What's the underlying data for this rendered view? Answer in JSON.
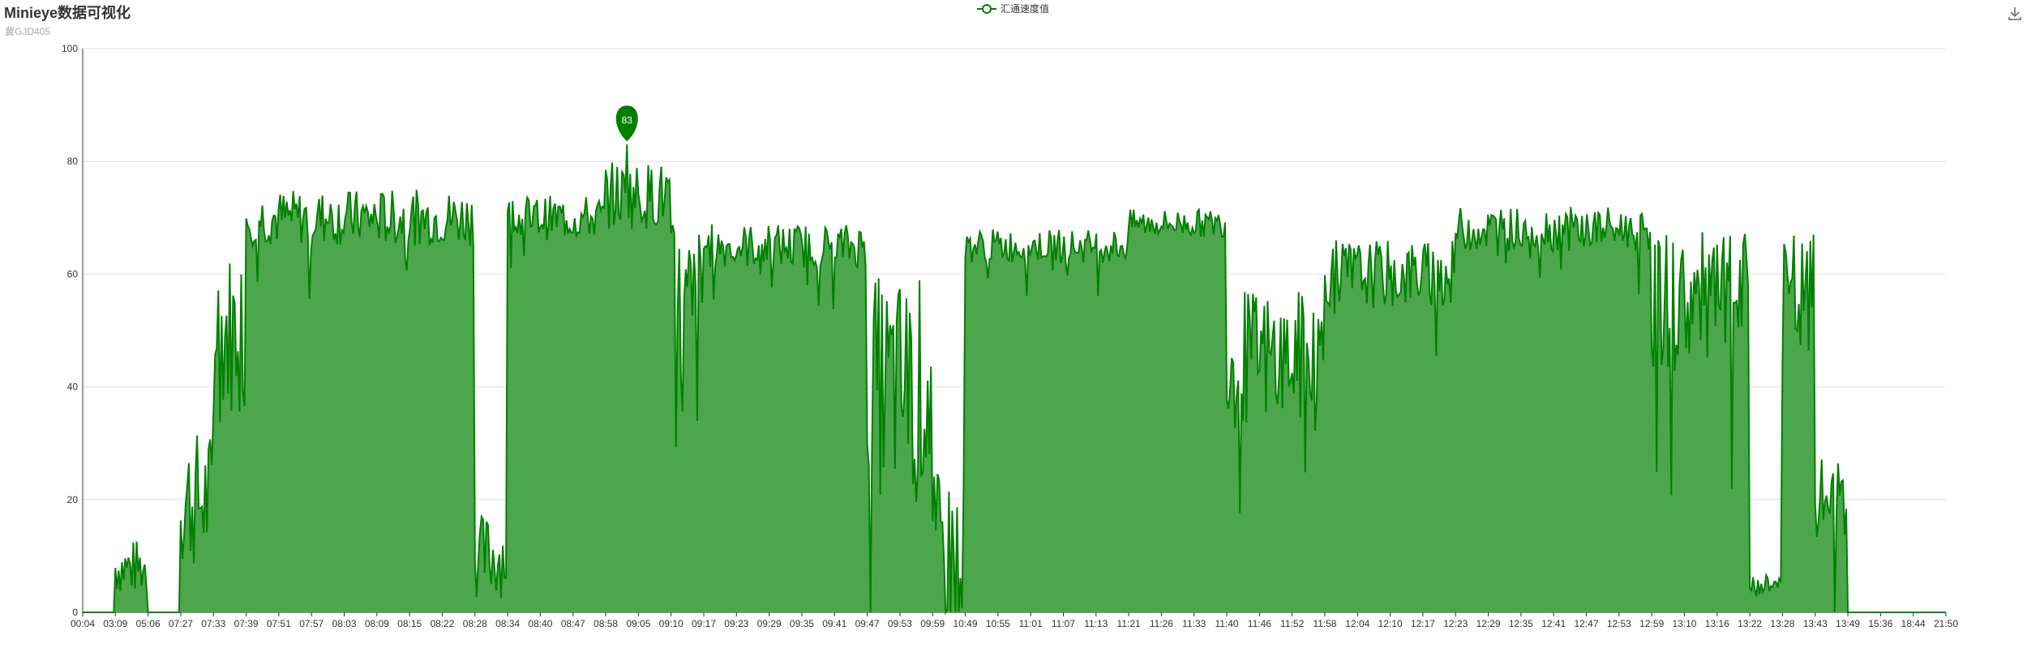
{
  "title": "Minieye数据可视化",
  "subtitle": "冀GJD405",
  "toolbox": {
    "save_icon": "download-icon"
  },
  "colors": {
    "line": "#008000",
    "area": "#4ca64c",
    "marker": "#008000",
    "grid": "#e0e0e0",
    "axis": "#333333"
  },
  "chart_data": {
    "type": "area",
    "series": [
      {
        "name": "汇通速度值"
      }
    ],
    "ylim": [
      0,
      100
    ],
    "yticks": [
      0,
      20,
      40,
      60,
      80,
      100
    ],
    "xticks": [
      "00:04",
      "03:09",
      "05:06",
      "07:27",
      "07:33",
      "07:39",
      "07:51",
      "07:57",
      "08:03",
      "08:09",
      "08:15",
      "08:22",
      "08:28",
      "08:34",
      "08:40",
      "08:47",
      "08:58",
      "09:05",
      "09:10",
      "09:17",
      "09:23",
      "09:29",
      "09:35",
      "09:41",
      "09:47",
      "09:53",
      "09:59",
      "10:49",
      "10:55",
      "11:01",
      "11:07",
      "11:13",
      "11:21",
      "11:26",
      "11:33",
      "11:40",
      "11:46",
      "11:52",
      "11:58",
      "12:04",
      "12:10",
      "12:17",
      "12:23",
      "12:29",
      "12:35",
      "12:41",
      "12:47",
      "12:53",
      "12:59",
      "13:10",
      "13:16",
      "13:22",
      "13:28",
      "13:43",
      "13:49",
      "15:36",
      "18:44",
      "21:50"
    ],
    "max_point": {
      "label": "83",
      "value": 83,
      "at": "09:05"
    },
    "segments": [
      {
        "from": "00:04",
        "to": "03:09",
        "level": 0,
        "spread": 0
      },
      {
        "from": "03:09",
        "to": "05:06",
        "level": 8,
        "spread": 10
      },
      {
        "from": "05:06",
        "to": "07:27",
        "level": 0,
        "spread": 0
      },
      {
        "from": "07:27",
        "to": "07:33",
        "level": 20,
        "spread": 25
      },
      {
        "from": "07:33",
        "to": "07:39",
        "level": 50,
        "spread": 30
      },
      {
        "from": "07:39",
        "to": "08:28",
        "level": 70,
        "spread": 10
      },
      {
        "from": "08:28",
        "to": "08:34",
        "level": 10,
        "spread": 15
      },
      {
        "from": "08:34",
        "to": "08:58",
        "level": 70,
        "spread": 8
      },
      {
        "from": "08:58",
        "to": "09:10",
        "level": 74,
        "spread": 12
      },
      {
        "from": "09:10",
        "to": "09:17",
        "level": 50,
        "spread": 40
      },
      {
        "from": "09:17",
        "to": "09:47",
        "level": 65,
        "spread": 8
      },
      {
        "from": "09:47",
        "to": "09:59",
        "level": 40,
        "spread": 40
      },
      {
        "from": "09:59",
        "to": "10:49",
        "level": 10,
        "spread": 30
      },
      {
        "from": "10:49",
        "to": "11:21",
        "level": 65,
        "spread": 6
      },
      {
        "from": "11:21",
        "to": "11:40",
        "level": 69,
        "spread": 5
      },
      {
        "from": "11:40",
        "to": "11:58",
        "level": 45,
        "spread": 25
      },
      {
        "from": "11:58",
        "to": "12:23",
        "level": 60,
        "spread": 12
      },
      {
        "from": "12:23",
        "to": "12:59",
        "level": 68,
        "spread": 8
      },
      {
        "from": "12:59",
        "to": "13:22",
        "level": 55,
        "spread": 25
      },
      {
        "from": "13:22",
        "to": "13:28",
        "level": 5,
        "spread": 5
      },
      {
        "from": "13:28",
        "to": "13:43",
        "level": 55,
        "spread": 25
      },
      {
        "from": "13:43",
        "to": "13:49",
        "level": 20,
        "spread": 15
      },
      {
        "from": "13:49",
        "to": "21:50",
        "level": 0,
        "spread": 0
      }
    ]
  }
}
